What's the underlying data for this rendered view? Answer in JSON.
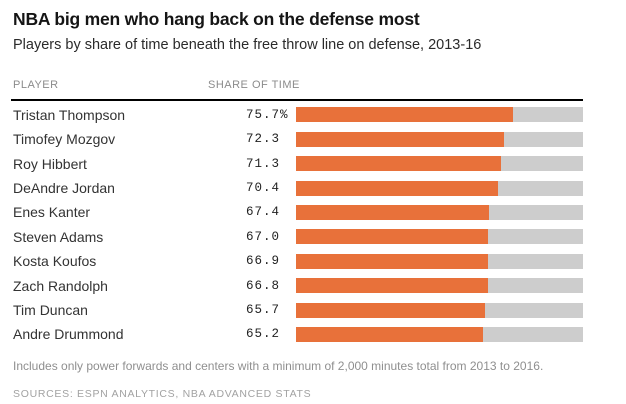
{
  "title": "NBA big men who hang back on the defense most",
  "subtitle": "Players by share of time beneath the free throw line on defense, 2013-16",
  "columns": {
    "player": "PLAYER",
    "share": "SHARE OF TIME"
  },
  "footnote": "Includes only power forwards and centers with a minimum of 2,000 minutes total from 2013 to 2016.",
  "sources": "SOURCES: ESPN ANALYTICS, NBA ADVANCED STATS",
  "colors": {
    "bar_fill": "#e8713a",
    "bar_track": "#cdcdcd",
    "header_rule": "#000000",
    "header_text": "#8b8b8b",
    "title_text": "#151515",
    "footnote_text": "#8f8f8f"
  },
  "chart_data": {
    "type": "bar",
    "orientation": "horizontal",
    "title": "NBA big men who hang back on the defense most",
    "subtitle": "Players by share of time beneath the free throw line on defense, 2013-16",
    "categories": [
      "Tristan Thompson",
      "Timofey Mozgov",
      "Roy Hibbert",
      "DeAndre Jordan",
      "Enes Kanter",
      "Steven Adams",
      "Kosta Koufos",
      "Zach Randolph",
      "Tim Duncan",
      "Andre Drummond"
    ],
    "values": [
      75.7,
      72.3,
      71.3,
      70.4,
      67.4,
      67.0,
      66.9,
      66.8,
      65.7,
      65.2
    ],
    "value_labels": [
      "75.7%",
      "72.3",
      "71.3",
      "70.4",
      "67.4",
      "67.0",
      "66.9",
      "66.8",
      "65.7",
      "65.2"
    ],
    "unit": "%",
    "xlim": [
      0,
      100
    ],
    "grid": false,
    "legend": "none"
  }
}
